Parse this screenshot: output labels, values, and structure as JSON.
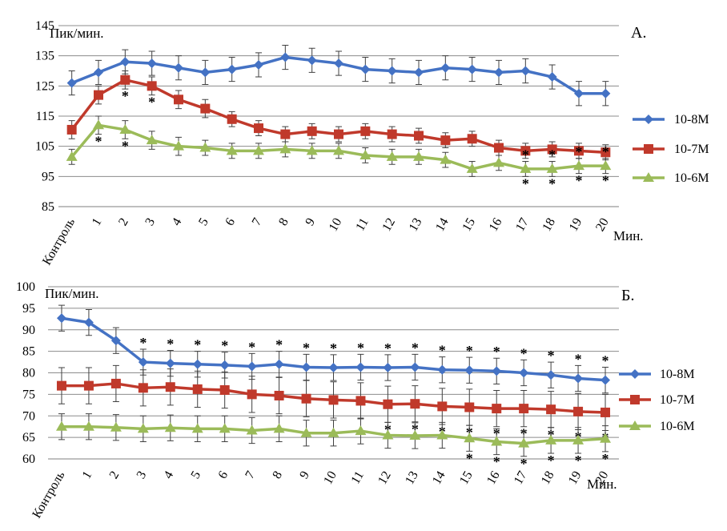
{
  "chart_data": [
    {
      "type": "line",
      "panel_label": "А.",
      "ylabel": "Пик/мин.",
      "xlabel": "Мин.",
      "ylim": [
        85,
        145
      ],
      "yticks": [
        85,
        95,
        105,
        115,
        125,
        135,
        145
      ],
      "grid": true,
      "legend_position": "right",
      "categories": [
        "Контроль",
        "1",
        "2",
        "3",
        "4",
        "5",
        "6",
        "7",
        "8",
        "9",
        "10",
        "11",
        "12",
        "13",
        "14",
        "15",
        "16",
        "17",
        "18",
        "19",
        "20"
      ],
      "series": [
        {
          "name": "10-8М",
          "color": "#4472C4",
          "marker": "diamond",
          "values": [
            126,
            129.5,
            133,
            132.5,
            131,
            129.5,
            130.5,
            132,
            134.5,
            133.5,
            132.5,
            130.5,
            130,
            129.5,
            131,
            130.5,
            129.5,
            130,
            128,
            122.5,
            122.5
          ],
          "errors": [
            4,
            4,
            4,
            4,
            4,
            4,
            4,
            4,
            4,
            4,
            4,
            4,
            4,
            4,
            4,
            4,
            4,
            4,
            4,
            4,
            4
          ],
          "stars_above": [],
          "stars_below": []
        },
        {
          "name": "10-7М",
          "color": "#C0392B",
          "marker": "square",
          "values": [
            110.5,
            122,
            127,
            125,
            120.5,
            117.5,
            114,
            111,
            109,
            110,
            109,
            110,
            109,
            108.5,
            107,
            107.5,
            104.5,
            103.5,
            104,
            103.5,
            103
          ],
          "errors": [
            3,
            3,
            3,
            3,
            3,
            3,
            2.5,
            2.5,
            2.5,
            2.5,
            2.5,
            2.5,
            2.5,
            2.5,
            2.5,
            2.5,
            2.5,
            2.5,
            2.5,
            2.5,
            2.5
          ],
          "stars_above": [],
          "stars_below": [
            2,
            3
          ]
        },
        {
          "name": "10-6М",
          "color": "#9BBB59",
          "marker": "triangle",
          "values": [
            101.5,
            112,
            110.5,
            107,
            105,
            104.5,
            103.5,
            103.5,
            104,
            103.5,
            103.5,
            102,
            101.5,
            101.5,
            100.5,
            97.5,
            99.5,
            97.5,
            97.5,
            98.5,
            98.5
          ],
          "errors": [
            2.5,
            3,
            3,
            3,
            3,
            2.5,
            2.5,
            2.5,
            2.5,
            2.5,
            2.5,
            2.5,
            2.5,
            2.5,
            2.5,
            2.5,
            2.5,
            2.5,
            2.5,
            2.5,
            2.5
          ],
          "stars_above": [
            17,
            18,
            19,
            20
          ],
          "stars_below": [
            1,
            2,
            17,
            18,
            19,
            20
          ]
        }
      ],
      "star_symbol": "*"
    },
    {
      "type": "line",
      "panel_label": "Б.",
      "ylabel": "Пик/мин.",
      "xlabel": "Мин.",
      "ylim": [
        60,
        100
      ],
      "yticks": [
        60,
        65,
        70,
        75,
        80,
        85,
        90,
        95,
        100
      ],
      "grid": true,
      "legend_position": "right",
      "categories": [
        "Контроль",
        "1",
        "2",
        "3",
        "4",
        "5",
        "6",
        "7",
        "8",
        "9",
        "10",
        "11",
        "12",
        "13",
        "14",
        "15",
        "16",
        "17",
        "18",
        "19",
        "20"
      ],
      "series": [
        {
          "name": "10-8М",
          "color": "#4472C4",
          "marker": "diamond",
          "values": [
            92.7,
            91.7,
            87.5,
            82.5,
            82.2,
            82,
            81.8,
            81.5,
            82,
            81.3,
            81.2,
            81.3,
            81.2,
            81.3,
            80.7,
            80.6,
            80.4,
            80,
            79.5,
            78.7,
            78.3
          ],
          "errors": [
            3,
            3,
            3,
            3,
            3,
            3,
            3,
            3,
            3,
            3,
            3,
            3,
            3,
            3,
            3,
            3,
            3,
            3,
            3,
            3,
            3
          ],
          "stars_above": [
            3,
            4,
            5,
            6,
            7,
            8,
            9,
            10,
            11,
            12,
            13,
            14,
            15,
            16,
            17,
            18,
            19,
            20
          ],
          "stars_below": []
        },
        {
          "name": "10-7М",
          "color": "#C0392B",
          "marker": "square",
          "values": [
            77,
            77,
            77.5,
            76.5,
            76.7,
            76.2,
            76,
            75,
            74.7,
            74,
            73.7,
            73.5,
            72.7,
            72.8,
            72.2,
            72,
            71.7,
            71.7,
            71.5,
            71,
            70.8
          ],
          "errors": [
            4.2,
            4.2,
            4.2,
            4.2,
            4.2,
            4.2,
            4.2,
            4.2,
            4.2,
            4.2,
            4.2,
            4.2,
            4.2,
            4.2,
            4.2,
            4.2,
            4.2,
            4.2,
            4.2,
            4.2,
            4.2
          ],
          "stars_above": [],
          "stars_below": [
            12,
            13,
            14,
            15,
            16,
            17,
            18,
            19,
            20
          ]
        },
        {
          "name": "10-6М",
          "color": "#9BBB59",
          "marker": "triangle",
          "values": [
            67.5,
            67.5,
            67.3,
            67,
            67.2,
            67,
            67,
            66.6,
            67,
            66,
            66,
            66.5,
            65.5,
            65.4,
            65.5,
            64.8,
            64,
            63.6,
            64.3,
            64.3,
            64.7
          ],
          "errors": [
            3,
            3,
            3,
            3,
            3,
            3,
            3,
            3,
            3,
            3,
            3,
            3,
            3,
            3,
            3,
            3,
            3,
            3,
            3,
            3,
            3
          ],
          "stars_above": [],
          "stars_below": [
            15,
            16,
            17,
            18,
            19,
            20
          ]
        }
      ],
      "star_symbol": "*"
    }
  ]
}
